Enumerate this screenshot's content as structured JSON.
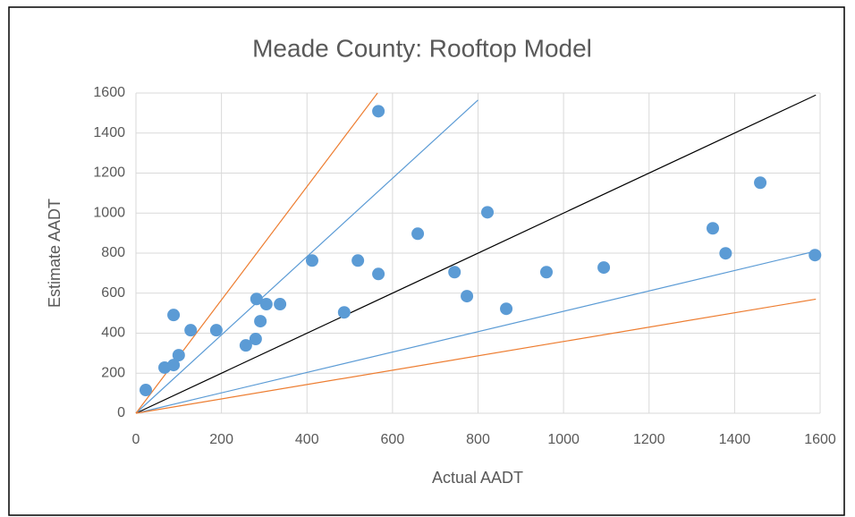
{
  "chart_data": {
    "type": "scatter",
    "title": "Meade County: Rooftop Model",
    "x_label": "Actual AADT",
    "y_label": "Estimate AADT",
    "series": [
      {
        "color": "#5b9bd5",
        "x": [
          23,
          67,
          88,
          88,
          128,
          100,
          188,
          257,
          280,
          282,
          291,
          305,
          337,
          412,
          519,
          567,
          567,
          487,
          659,
          745,
          774,
          822,
          866,
          960,
          1094,
          1349,
          1379,
          1460,
          1588
        ],
        "values": [
          116,
          228,
          241,
          491,
          415,
          290,
          415,
          339,
          371,
          571,
          460,
          545,
          545,
          763,
          763,
          1509,
          696,
          504,
          897,
          705,
          585,
          1004,
          522,
          705,
          728,
          924,
          799,
          1152,
          790
        ]
      }
    ],
    "lines": [
      {
        "color": "#000000",
        "x": [
          0,
          1590
        ],
        "y": [
          0,
          1590
        ]
      },
      {
        "color": "#5b9bd5",
        "x": [
          0,
          800
        ],
        "y": [
          0,
          1565
        ]
      },
      {
        "color": "#5b9bd5",
        "x": [
          0,
          1590
        ],
        "y": [
          0,
          810
        ]
      },
      {
        "color": "#ed7d31",
        "x": [
          0,
          565
        ],
        "y": [
          0,
          1600
        ]
      },
      {
        "color": "#ed7d31",
        "x": [
          0,
          1590
        ],
        "y": [
          0,
          570
        ]
      }
    ],
    "xlim": [
      0,
      1600
    ],
    "ylim": [
      0,
      1600
    ],
    "xticks": [
      0,
      200,
      400,
      600,
      800,
      1000,
      1200,
      1400,
      1600
    ],
    "yticks": [
      0,
      200,
      400,
      600,
      800,
      1000,
      1200,
      1400,
      1600
    ],
    "grid": true
  }
}
